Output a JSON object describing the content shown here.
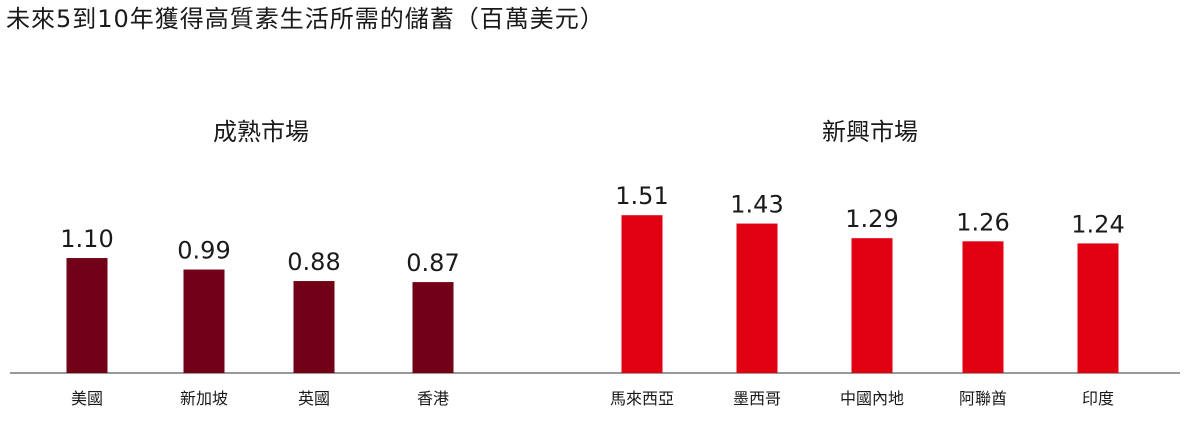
{
  "title": "未來5到10年獲得高質素生活所需的儲蓄（百萬美元）",
  "colors": {
    "mature": "#720016",
    "emerging": "#e00012",
    "axis": "#333333"
  },
  "chart_data": [
    {
      "type": "bar",
      "title": "成熟市場",
      "categories": [
        "美國",
        "新加坡",
        "英國",
        "香港"
      ],
      "values": [
        1.1,
        0.99,
        0.88,
        0.87
      ],
      "value_labels": [
        "1.10",
        "0.99",
        "0.88",
        "0.87"
      ],
      "ylim": [
        0,
        1.6
      ],
      "grid": false
    },
    {
      "type": "bar",
      "title": "新興市場",
      "categories": [
        "馬來西亞",
        "墨西哥",
        "中國內地",
        "阿聯酋",
        "印度"
      ],
      "values": [
        1.51,
        1.43,
        1.29,
        1.26,
        1.24
      ],
      "value_labels": [
        "1.51",
        "1.43",
        "1.29",
        "1.26",
        "1.24"
      ],
      "ylim": [
        0,
        1.6
      ],
      "grid": false
    }
  ]
}
